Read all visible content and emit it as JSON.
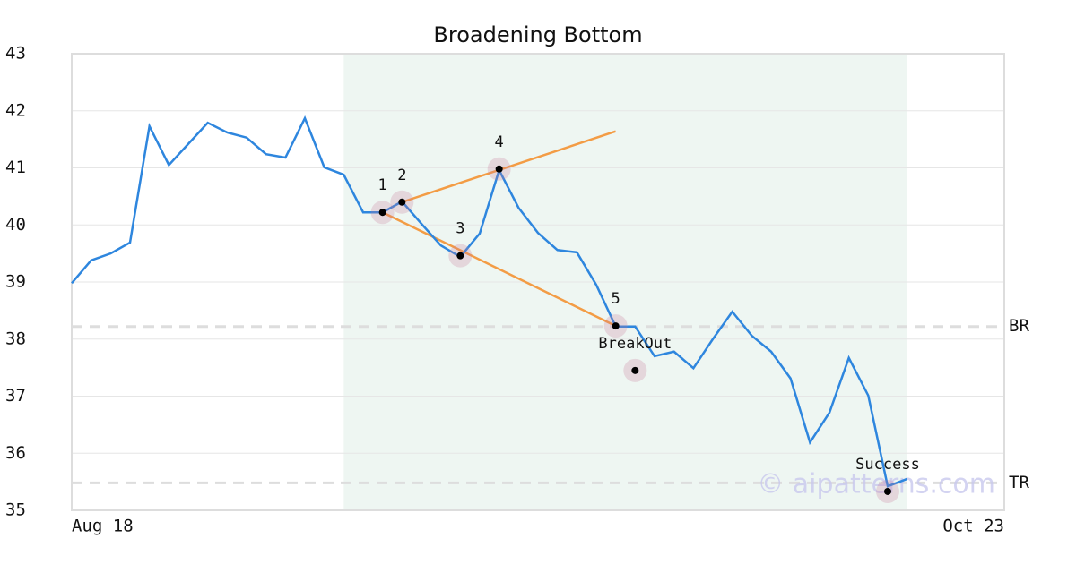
{
  "chart_data": {
    "type": "line",
    "title": "Broadening Bottom",
    "x": [
      0,
      1,
      2,
      3,
      4,
      5,
      6,
      7,
      8,
      9,
      10,
      11,
      12,
      13,
      14,
      15,
      16,
      17,
      18,
      19,
      20,
      21,
      22,
      23,
      24,
      25,
      26,
      27,
      28,
      29,
      30,
      31,
      32,
      33,
      34,
      35,
      36,
      37,
      38,
      39,
      40,
      41,
      42,
      43
    ],
    "series": [
      {
        "color": "#2e86de",
        "values": [
          38.98,
          39.38,
          39.5,
          39.69,
          41.73,
          41.05,
          41.42,
          41.79,
          41.62,
          41.53,
          41.24,
          41.18,
          41.87,
          41.01,
          40.88,
          40.22,
          40.22,
          40.41,
          40.02,
          39.64,
          39.44,
          39.85,
          40.96,
          40.3,
          39.86,
          39.56,
          39.52,
          38.95,
          38.22,
          38.22,
          37.7,
          37.78,
          37.49,
          38.0,
          38.48,
          38.06,
          37.78,
          37.31,
          36.19,
          36.71,
          37.67,
          37.01,
          35.42,
          35.55
        ]
      }
    ],
    "xlim": [
      0,
      48
    ],
    "xticks": [
      {
        "value": 0,
        "label": "Aug 18"
      },
      {
        "value": 48,
        "label": "Oct 23"
      }
    ],
    "ylim": [
      35,
      43
    ],
    "yticks": [
      35,
      36,
      37,
      38,
      39,
      40,
      41,
      42,
      43
    ],
    "grid": true,
    "highlight": [
      14,
      43
    ],
    "highlight_color": "#eef6f2",
    "trendline_color": "#f39c45",
    "trendlines": [
      {
        "x": [
          17,
          28
        ],
        "y": [
          40.4,
          41.64
        ]
      },
      {
        "x": [
          16,
          28
        ],
        "y": [
          40.22,
          38.23
        ]
      }
    ],
    "points": [
      {
        "label": "1",
        "x": 16,
        "y": 40.22
      },
      {
        "label": "2",
        "x": 17,
        "y": 40.4
      },
      {
        "label": "3",
        "x": 20,
        "y": 39.46
      },
      {
        "label": "4",
        "x": 22,
        "y": 40.98
      },
      {
        "label": "5",
        "x": 28,
        "y": 38.23
      },
      {
        "label": "BreakOut",
        "x": 29,
        "y": 37.45
      },
      {
        "label": "Success",
        "x": 42,
        "y": 35.33
      }
    ],
    "levels": [
      {
        "label": "BR",
        "value": 38.22
      },
      {
        "label": "TR",
        "value": 35.48
      }
    ],
    "watermark": "© aipatterns.com"
  }
}
